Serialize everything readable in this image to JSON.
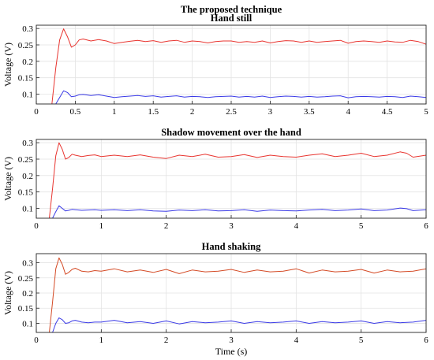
{
  "figure": {
    "suptitle": "The proposed technique"
  },
  "chart_data": [
    {
      "type": "line",
      "title": "Hand still",
      "xlabel": "",
      "ylabel": "Voltage (V)",
      "xlim": [
        0,
        5
      ],
      "ylim": [
        0.07,
        0.31
      ],
      "xticks": [
        "0",
        "0.5",
        "1",
        "1.5",
        "2",
        "2.5",
        "3",
        "3.5",
        "4",
        "4.5",
        "5"
      ],
      "yticks": [
        "0.1",
        "0.15",
        "0.2",
        "0.25",
        "0.3"
      ],
      "grid": true,
      "legend": "none",
      "series": [
        {
          "color": "#e8342f",
          "x": [
            0.2,
            0.25,
            0.3,
            0.35,
            0.4,
            0.45,
            0.5,
            0.55,
            0.6,
            0.7,
            0.8,
            0.9,
            1.0,
            1.1,
            1.2,
            1.3,
            1.4,
            1.5,
            1.6,
            1.7,
            1.8,
            1.9,
            2.0,
            2.1,
            2.2,
            2.3,
            2.4,
            2.5,
            2.6,
            2.7,
            2.8,
            2.9,
            3.0,
            3.1,
            3.2,
            3.3,
            3.4,
            3.5,
            3.6,
            3.7,
            3.8,
            3.9,
            4.0,
            4.1,
            4.2,
            4.3,
            4.4,
            4.5,
            4.6,
            4.7,
            4.8,
            4.9,
            5.0
          ],
          "y": [
            0.07,
            0.18,
            0.265,
            0.299,
            0.275,
            0.243,
            0.25,
            0.265,
            0.268,
            0.262,
            0.266,
            0.262,
            0.254,
            0.258,
            0.261,
            0.264,
            0.26,
            0.263,
            0.258,
            0.262,
            0.264,
            0.258,
            0.262,
            0.26,
            0.256,
            0.26,
            0.262,
            0.262,
            0.258,
            0.26,
            0.258,
            0.262,
            0.256,
            0.26,
            0.263,
            0.262,
            0.258,
            0.262,
            0.258,
            0.26,
            0.262,
            0.264,
            0.255,
            0.26,
            0.262,
            0.26,
            0.258,
            0.262,
            0.259,
            0.258,
            0.264,
            0.26,
            0.252
          ]
        },
        {
          "color": "#3a3ae6",
          "x": [
            0.2,
            0.25,
            0.3,
            0.35,
            0.4,
            0.45,
            0.5,
            0.55,
            0.6,
            0.7,
            0.8,
            0.9,
            1.0,
            1.1,
            1.2,
            1.3,
            1.4,
            1.5,
            1.6,
            1.7,
            1.8,
            1.9,
            2.0,
            2.1,
            2.2,
            2.3,
            2.4,
            2.5,
            2.6,
            2.7,
            2.8,
            2.9,
            3.0,
            3.1,
            3.2,
            3.3,
            3.4,
            3.5,
            3.6,
            3.7,
            3.8,
            3.9,
            4.0,
            4.1,
            4.2,
            4.3,
            4.4,
            4.5,
            4.6,
            4.7,
            4.8,
            4.9,
            5.0
          ],
          "y": [
            0.07,
            0.07,
            0.09,
            0.11,
            0.105,
            0.092,
            0.094,
            0.098,
            0.099,
            0.096,
            0.098,
            0.094,
            0.09,
            0.092,
            0.094,
            0.096,
            0.093,
            0.095,
            0.091,
            0.093,
            0.095,
            0.091,
            0.093,
            0.092,
            0.09,
            0.092,
            0.093,
            0.094,
            0.091,
            0.093,
            0.091,
            0.094,
            0.09,
            0.092,
            0.094,
            0.093,
            0.091,
            0.093,
            0.091,
            0.092,
            0.094,
            0.095,
            0.089,
            0.092,
            0.093,
            0.092,
            0.091,
            0.093,
            0.092,
            0.09,
            0.094,
            0.092,
            0.09
          ]
        }
      ]
    },
    {
      "type": "line",
      "title": "Shadow movement over the hand",
      "xlabel": "",
      "ylabel": "Voltage (V)",
      "xlim": [
        0,
        6
      ],
      "ylim": [
        0.07,
        0.31
      ],
      "xticks": [
        "0",
        "1",
        "2",
        "3",
        "4",
        "5",
        "6"
      ],
      "yticks": [
        "0.1",
        "0.15",
        "0.2",
        "0.25",
        "0.3"
      ],
      "grid": true,
      "legend": "none",
      "series": [
        {
          "color": "#e8342f",
          "x": [
            0.2,
            0.25,
            0.3,
            0.35,
            0.4,
            0.45,
            0.5,
            0.55,
            0.6,
            0.7,
            0.8,
            0.9,
            1.0,
            1.2,
            1.4,
            1.6,
            1.8,
            2.0,
            2.2,
            2.4,
            2.6,
            2.8,
            3.0,
            3.2,
            3.4,
            3.6,
            3.8,
            4.0,
            4.2,
            4.4,
            4.6,
            4.8,
            5.0,
            5.2,
            5.4,
            5.6,
            5.7,
            5.8,
            6.0
          ],
          "y": [
            0.07,
            0.16,
            0.26,
            0.3,
            0.28,
            0.25,
            0.255,
            0.265,
            0.262,
            0.258,
            0.261,
            0.263,
            0.258,
            0.262,
            0.258,
            0.263,
            0.256,
            0.252,
            0.262,
            0.258,
            0.265,
            0.256,
            0.258,
            0.264,
            0.255,
            0.262,
            0.258,
            0.256,
            0.262,
            0.266,
            0.258,
            0.262,
            0.268,
            0.258,
            0.262,
            0.272,
            0.268,
            0.256,
            0.262
          ]
        },
        {
          "color": "#3a3ae6",
          "x": [
            0.2,
            0.25,
            0.3,
            0.35,
            0.4,
            0.45,
            0.5,
            0.55,
            0.6,
            0.7,
            0.8,
            0.9,
            1.0,
            1.2,
            1.4,
            1.6,
            1.8,
            2.0,
            2.2,
            2.4,
            2.6,
            2.8,
            3.0,
            3.2,
            3.4,
            3.6,
            3.8,
            4.0,
            4.2,
            4.4,
            4.6,
            4.8,
            5.0,
            5.2,
            5.4,
            5.6,
            5.7,
            5.8,
            6.0
          ],
          "y": [
            0.07,
            0.07,
            0.09,
            0.108,
            0.1,
            0.092,
            0.094,
            0.097,
            0.096,
            0.094,
            0.095,
            0.096,
            0.094,
            0.096,
            0.093,
            0.096,
            0.092,
            0.091,
            0.095,
            0.093,
            0.096,
            0.092,
            0.093,
            0.096,
            0.091,
            0.095,
            0.093,
            0.092,
            0.095,
            0.097,
            0.093,
            0.095,
            0.098,
            0.093,
            0.095,
            0.101,
            0.099,
            0.093,
            0.096
          ]
        }
      ]
    },
    {
      "type": "line",
      "title": "Hand shaking",
      "xlabel": "Time (s)",
      "ylabel": "Voltage (V)",
      "xlim": [
        0,
        6
      ],
      "ylim": [
        0.07,
        0.33
      ],
      "xticks": [
        "0",
        "1",
        "2",
        "3",
        "4",
        "5",
        "6"
      ],
      "yticks": [
        "0.1",
        "0.15",
        "0.2",
        "0.25",
        "0.3"
      ],
      "grid": true,
      "legend": "none",
      "series": [
        {
          "color": "#d44a25",
          "x": [
            0.2,
            0.25,
            0.3,
            0.35,
            0.4,
            0.45,
            0.5,
            0.55,
            0.6,
            0.7,
            0.8,
            0.9,
            1.0,
            1.2,
            1.4,
            1.6,
            1.8,
            2.0,
            2.2,
            2.4,
            2.6,
            2.8,
            3.0,
            3.2,
            3.4,
            3.6,
            3.8,
            4.0,
            4.2,
            4.4,
            4.6,
            4.8,
            5.0,
            5.2,
            5.4,
            5.6,
            5.8,
            6.0
          ],
          "y": [
            0.07,
            0.17,
            0.28,
            0.316,
            0.295,
            0.262,
            0.268,
            0.278,
            0.282,
            0.272,
            0.27,
            0.274,
            0.272,
            0.28,
            0.27,
            0.276,
            0.268,
            0.278,
            0.264,
            0.276,
            0.27,
            0.272,
            0.278,
            0.268,
            0.276,
            0.27,
            0.272,
            0.28,
            0.266,
            0.276,
            0.27,
            0.272,
            0.278,
            0.266,
            0.276,
            0.27,
            0.272,
            0.28
          ]
        },
        {
          "color": "#3a3ae6",
          "x": [
            0.2,
            0.25,
            0.3,
            0.35,
            0.4,
            0.45,
            0.5,
            0.55,
            0.6,
            0.7,
            0.8,
            0.9,
            1.0,
            1.2,
            1.4,
            1.6,
            1.8,
            2.0,
            2.2,
            2.4,
            2.6,
            2.8,
            3.0,
            3.2,
            3.4,
            3.6,
            3.8,
            4.0,
            4.2,
            4.4,
            4.6,
            4.8,
            5.0,
            5.2,
            5.4,
            5.6,
            5.8,
            6.0
          ],
          "y": [
            0.07,
            0.07,
            0.1,
            0.118,
            0.112,
            0.1,
            0.102,
            0.108,
            0.11,
            0.104,
            0.102,
            0.104,
            0.104,
            0.11,
            0.102,
            0.106,
            0.1,
            0.108,
            0.098,
            0.106,
            0.102,
            0.104,
            0.108,
            0.1,
            0.106,
            0.102,
            0.104,
            0.108,
            0.1,
            0.106,
            0.102,
            0.104,
            0.108,
            0.1,
            0.106,
            0.102,
            0.104,
            0.11
          ]
        }
      ]
    }
  ]
}
